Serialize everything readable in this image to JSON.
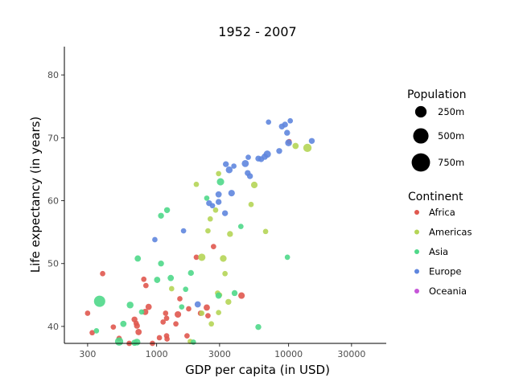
{
  "chart_data": {
    "type": "scatter",
    "title": "1952 - 2007",
    "xlabel": "GDP per capita (in USD)",
    "ylabel": "Life expectancy (in years)",
    "x_scale": "log",
    "xlim": [
      200,
      55000
    ],
    "ylim": [
      37.3,
      84.5
    ],
    "x_ticks": [
      300,
      1000,
      3000,
      10000,
      30000
    ],
    "x_tick_labels": [
      "300",
      "1000",
      "3000",
      "10000",
      "30000"
    ],
    "y_ticks": [
      40,
      50,
      60,
      70,
      80
    ],
    "y_tick_labels": [
      "40",
      "50",
      "60",
      "70",
      "80"
    ],
    "grid": false,
    "legend_position": "right",
    "size_legend": {
      "title": "Population",
      "entries": [
        {
          "label": "250m",
          "value": 250
        },
        {
          "label": "500m",
          "value": 500
        },
        {
          "label": "750m",
          "value": 750
        }
      ]
    },
    "color_legend": {
      "title": "Continent",
      "entries": [
        {
          "label": "Africa",
          "color": "#e0584f"
        },
        {
          "label": "Americas",
          "color": "#b5d556"
        },
        {
          "label": "Asia",
          "color": "#4fd889"
        },
        {
          "label": "Europe",
          "color": "#5f86de"
        },
        {
          "label": "Oceania",
          "color": "#c656d8"
        }
      ]
    },
    "series": [
      {
        "name": "Africa",
        "points": [
          [
            300,
            42.1,
            5
          ],
          [
            325,
            39,
            5
          ],
          [
            390,
            48.4,
            5
          ],
          [
            470,
            39.9,
            5
          ],
          [
            520,
            38.1,
            5
          ],
          [
            620,
            37.3,
            5
          ],
          [
            680,
            41.1,
            8
          ],
          [
            700,
            40.5,
            5
          ],
          [
            710,
            40.1,
            8
          ],
          [
            730,
            39.1,
            10
          ],
          [
            800,
            47.5,
            5
          ],
          [
            830,
            46.5,
            5
          ],
          [
            820,
            42.3,
            10
          ],
          [
            870,
            43.1,
            10
          ],
          [
            930,
            37.3,
            5
          ],
          [
            1050,
            38.2,
            5
          ],
          [
            1120,
            40.7,
            5
          ],
          [
            1170,
            42.1,
            5
          ],
          [
            1190,
            41.3,
            5
          ],
          [
            1190,
            38.5,
            5
          ],
          [
            1200,
            38,
            5
          ],
          [
            1400,
            40.4,
            5
          ],
          [
            1450,
            41.9,
            12
          ],
          [
            1500,
            44.4,
            5
          ],
          [
            1700,
            38.5,
            5
          ],
          [
            1750,
            42.8,
            5
          ],
          [
            2000,
            51,
            5
          ],
          [
            2150,
            42.1,
            5
          ],
          [
            2400,
            43,
            10
          ],
          [
            2450,
            41.7,
            5
          ],
          [
            2700,
            52.7,
            5
          ],
          [
            4400,
            44.9,
            12
          ],
          [
            10100,
            69.4,
            5
          ]
        ]
      },
      {
        "name": "Americas",
        "points": [
          [
            1300,
            46,
            5
          ],
          [
            1800,
            37.6,
            5
          ],
          [
            2000,
            62.6,
            5
          ],
          [
            2200,
            51,
            18
          ],
          [
            2200,
            42.1,
            5
          ],
          [
            2450,
            55.2,
            5
          ],
          [
            2550,
            57.1,
            5
          ],
          [
            2600,
            40.4,
            5
          ],
          [
            2800,
            58.5,
            5
          ],
          [
            2900,
            45.3,
            5
          ],
          [
            2950,
            42.2,
            5
          ],
          [
            2950,
            64.3,
            5
          ],
          [
            3200,
            50.8,
            13
          ],
          [
            3300,
            48.4,
            5
          ],
          [
            3500,
            43.9,
            8
          ],
          [
            3600,
            54.7,
            8
          ],
          [
            5200,
            59.4,
            5
          ],
          [
            5500,
            62.5,
            12
          ],
          [
            6700,
            55.1,
            5
          ],
          [
            11300,
            68.7,
            10
          ],
          [
            13900,
            68.4,
            28
          ],
          [
            3000,
            45,
            5
          ]
        ]
      },
      {
        "name": "Asia",
        "points": [
          [
            350,
            39.3,
            5
          ],
          [
            370,
            44,
            70
          ],
          [
            520,
            37.6,
            28
          ],
          [
            560,
            40.4,
            10
          ],
          [
            630,
            43.4,
            14
          ],
          [
            680,
            37.4,
            10
          ],
          [
            710,
            37.5,
            14
          ],
          [
            720,
            50.8,
            10
          ],
          [
            770,
            42.3,
            5
          ],
          [
            1010,
            47.4,
            10
          ],
          [
            1080,
            57.6,
            8
          ],
          [
            1080,
            50,
            8
          ],
          [
            1200,
            58.5,
            8
          ],
          [
            1280,
            47.7,
            10
          ],
          [
            1550,
            43.1,
            5
          ],
          [
            1660,
            45.9,
            5
          ],
          [
            1820,
            48.5,
            8
          ],
          [
            1900,
            37.5,
            5
          ],
          [
            2400,
            60.4,
            5
          ],
          [
            2950,
            44.9,
            10
          ],
          [
            3050,
            63,
            18
          ],
          [
            3900,
            45.3,
            8
          ],
          [
            4350,
            55.9,
            5
          ],
          [
            5900,
            39.9,
            8
          ],
          [
            9800,
            51,
            5
          ]
        ]
      },
      {
        "name": "Europe",
        "points": [
          [
            970,
            53.8,
            5
          ],
          [
            1600,
            55.2,
            5
          ],
          [
            2050,
            43.5,
            10
          ],
          [
            2500,
            59.6,
            8
          ],
          [
            2650,
            59.2,
            5
          ],
          [
            2950,
            59.8,
            8
          ],
          [
            2950,
            61,
            10
          ],
          [
            3300,
            58,
            8
          ],
          [
            3350,
            65.8,
            8
          ],
          [
            3550,
            64.9,
            14
          ],
          [
            3700,
            61.2,
            12
          ],
          [
            3850,
            65.5,
            5
          ],
          [
            4700,
            65.9,
            16
          ],
          [
            4950,
            66.9,
            5
          ],
          [
            4900,
            64.4,
            8
          ],
          [
            5100,
            63.9,
            8
          ],
          [
            5900,
            66.7,
            8
          ],
          [
            6200,
            66.6,
            8
          ],
          [
            6600,
            67,
            10
          ],
          [
            6900,
            67.4,
            18
          ],
          [
            7050,
            72.5,
            5
          ],
          [
            8500,
            67.9,
            8
          ],
          [
            8900,
            71.8,
            8
          ],
          [
            9400,
            72.1,
            8
          ],
          [
            9750,
            70.8,
            8
          ],
          [
            10000,
            69.2,
            14
          ],
          [
            10300,
            72.7,
            5
          ],
          [
            15000,
            69.5,
            8
          ]
        ]
      }
    ]
  }
}
